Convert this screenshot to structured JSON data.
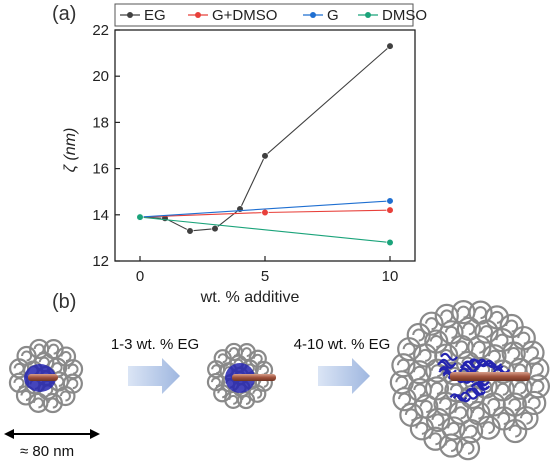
{
  "panel_a_label": "(a)",
  "panel_b_label": "(b)",
  "chart_data": {
    "type": "line",
    "xlabel": "wt. % additive",
    "ylabel": "ζ (nm)",
    "xlim": [
      -1,
      11
    ],
    "ylim": [
      12,
      22
    ],
    "xticks": [
      0,
      5,
      10
    ],
    "yticks": [
      12,
      14,
      16,
      18,
      20,
      22
    ],
    "grid": false,
    "legend_position": "top",
    "series": [
      {
        "name": "EG",
        "color": "#404040",
        "x": [
          0,
          1,
          2,
          3,
          4,
          5,
          10
        ],
        "y": [
          13.9,
          13.85,
          13.3,
          13.4,
          14.25,
          16.55,
          21.3
        ]
      },
      {
        "name": "G+DMSO",
        "color": "#e8403a",
        "x": [
          0,
          5,
          10
        ],
        "y": [
          13.9,
          14.1,
          14.2
        ]
      },
      {
        "name": "G",
        "color": "#1f6fd1",
        "x": [
          0,
          10
        ],
        "y": [
          13.9,
          14.6
        ]
      },
      {
        "name": "DMSO",
        "color": "#1aa37a",
        "x": [
          0,
          10
        ],
        "y": [
          13.9,
          12.8
        ]
      }
    ]
  },
  "scheme": {
    "step1_label": "1-3 wt. % EG",
    "step2_label": "4-10 wt. % EG",
    "scale_label": "≈ 80 nm",
    "coil_color": "#8a8a8a",
    "core_color": "#2424b0",
    "arrow_color": "#b07a6a",
    "process_arrow_color": "#b7c9e8"
  }
}
